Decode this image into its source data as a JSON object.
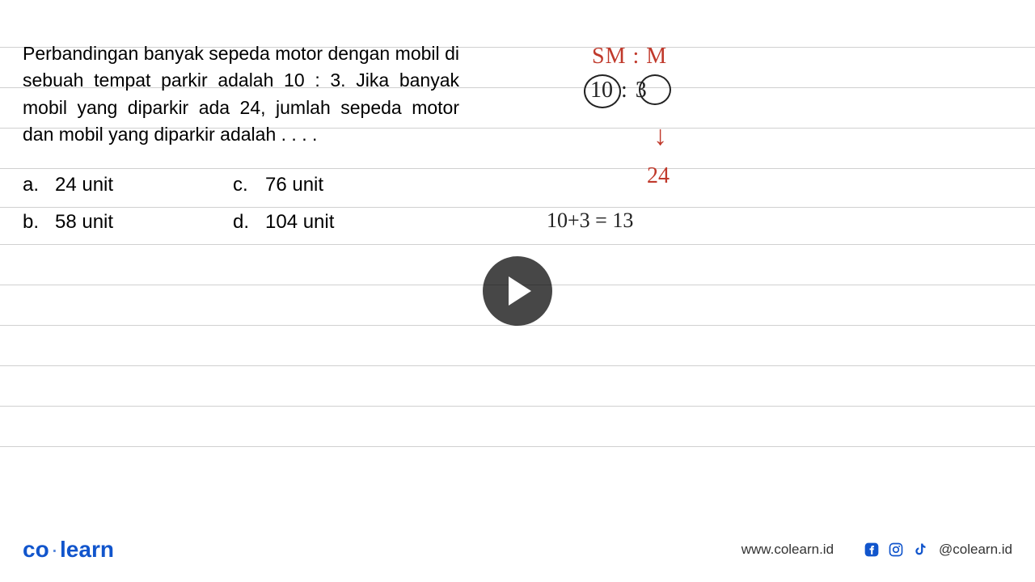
{
  "lines": {
    "positions": [
      58,
      108,
      158,
      208,
      256,
      302,
      352,
      402,
      452,
      502,
      552
    ]
  },
  "question": {
    "text": "Perbandingan banyak sepeda motor dengan mobil di sebuah tempat parkir adalah 10 : 3. Jika banyak mobil yang diparkir ada 24, jumlah sepeda motor dan mobil yang diparkir adalah . . . ."
  },
  "options": {
    "a": {
      "letter": "a.",
      "text": "24 unit"
    },
    "c": {
      "letter": "c.",
      "text": "76 unit"
    },
    "b": {
      "letter": "b.",
      "text": "58 unit"
    },
    "d": {
      "letter": "d.",
      "text": "104 unit"
    }
  },
  "handwriting": {
    "sm_m": "SM  :  M",
    "ten": "10",
    "colon": ":",
    "three": "3",
    "arrow": "↓",
    "v24": "24",
    "sum": "10+3 = 13"
  },
  "footer": {
    "logo_co": "co",
    "logo_dot": "·",
    "logo_learn": "learn",
    "url": "www.colearn.id",
    "handle": "@colearn.id"
  },
  "colors": {
    "red": "#c0392b",
    "black": "#222222",
    "line": "#d0d0d0",
    "brand": "#1155cc"
  }
}
